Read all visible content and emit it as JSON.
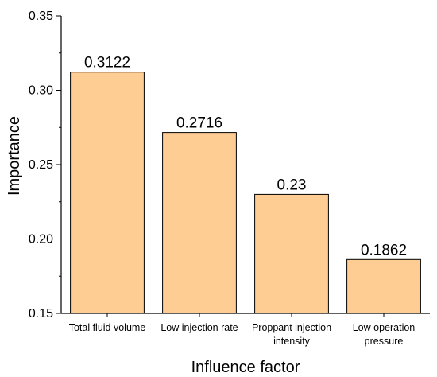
{
  "chart_data": {
    "type": "bar",
    "categories": [
      [
        "Total fluid volume"
      ],
      [
        "Low injection rate"
      ],
      [
        "Proppant injection",
        "intensity"
      ],
      [
        "Low operation",
        "pressure"
      ]
    ],
    "values": [
      0.3122,
      0.2716,
      0.23,
      0.1862
    ],
    "data_labels": [
      "0.3122",
      "0.2716",
      "0.23",
      "0.1862"
    ],
    "xlabel": "Influence factor",
    "ylabel": "Importance",
    "ylim": [
      0.15,
      0.35
    ],
    "yticks": [
      "0.15",
      "0.20",
      "0.25",
      "0.30",
      "0.35"
    ],
    "grid": false,
    "bar_color": "#FECD94",
    "bar_edge_color": "#000000"
  }
}
